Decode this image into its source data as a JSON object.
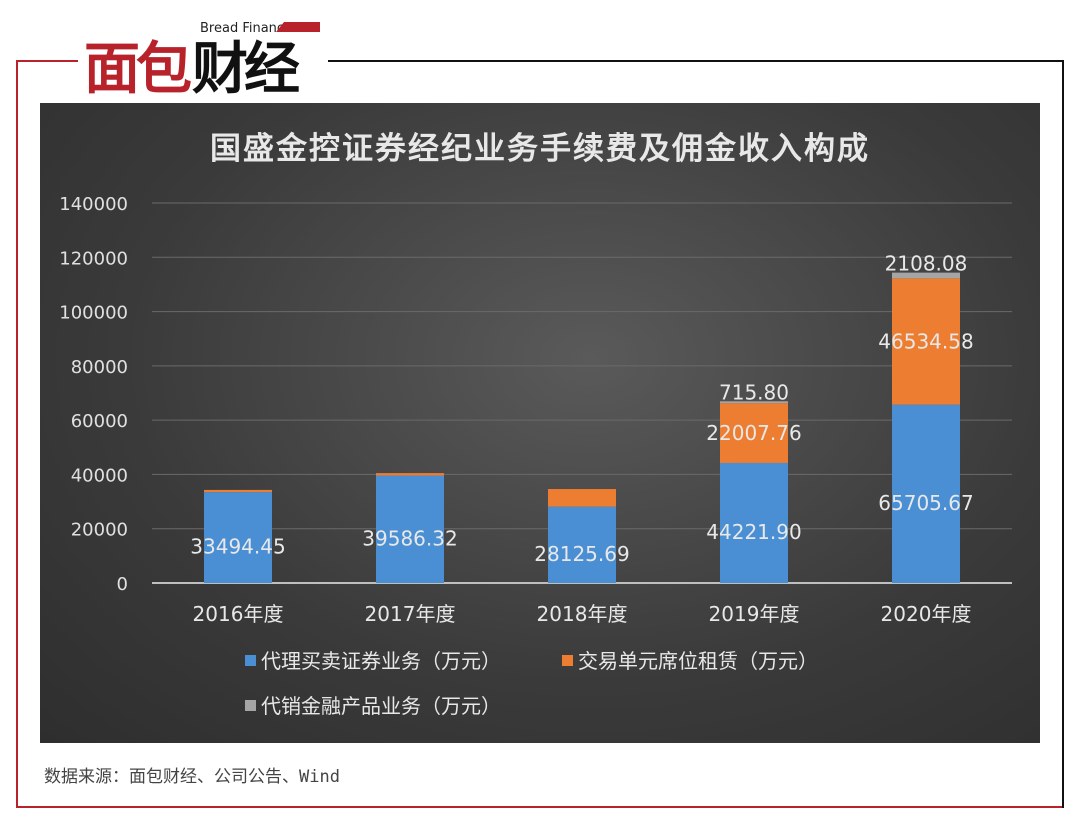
{
  "logo": {
    "en": "Bread Finance",
    "cn": "面包财经"
  },
  "source": "数据来源：面包财经、公司公告、Wind",
  "chart_data": {
    "type": "bar",
    "stacked": true,
    "title": "国盛金控证券经纪业务手续费及佣金收入构成",
    "categories": [
      "2016年度",
      "2017年度",
      "2018年度",
      "2019年度",
      "2020年度"
    ],
    "ylim": [
      0,
      140000
    ],
    "yticks": [
      0,
      20000,
      40000,
      60000,
      80000,
      100000,
      120000,
      140000
    ],
    "grid": true,
    "legend_position": "bottom",
    "series": [
      {
        "name": "代理买卖证券业务（万元）",
        "color": "#4a8fd4",
        "values": [
          33494.45,
          39586.32,
          28125.69,
          44221.9,
          65705.67
        ],
        "labels": [
          "33494.45",
          "39586.32",
          "28125.69",
          "44221.90",
          "65705.67"
        ]
      },
      {
        "name": "交易单元席位租赁（万元）",
        "color": "#ed7d31",
        "values": [
          800,
          900,
          6500,
          22007.76,
          46534.58
        ],
        "labels": [
          "",
          "",
          "",
          "22007.76",
          "46534.58"
        ]
      },
      {
        "name": "代销金融产品业务（万元）",
        "color": "#a5a5a5",
        "values": [
          0,
          0,
          0,
          715.8,
          2108.08
        ],
        "labels": [
          "",
          "",
          "",
          "715.80",
          "2108.08"
        ]
      }
    ]
  }
}
